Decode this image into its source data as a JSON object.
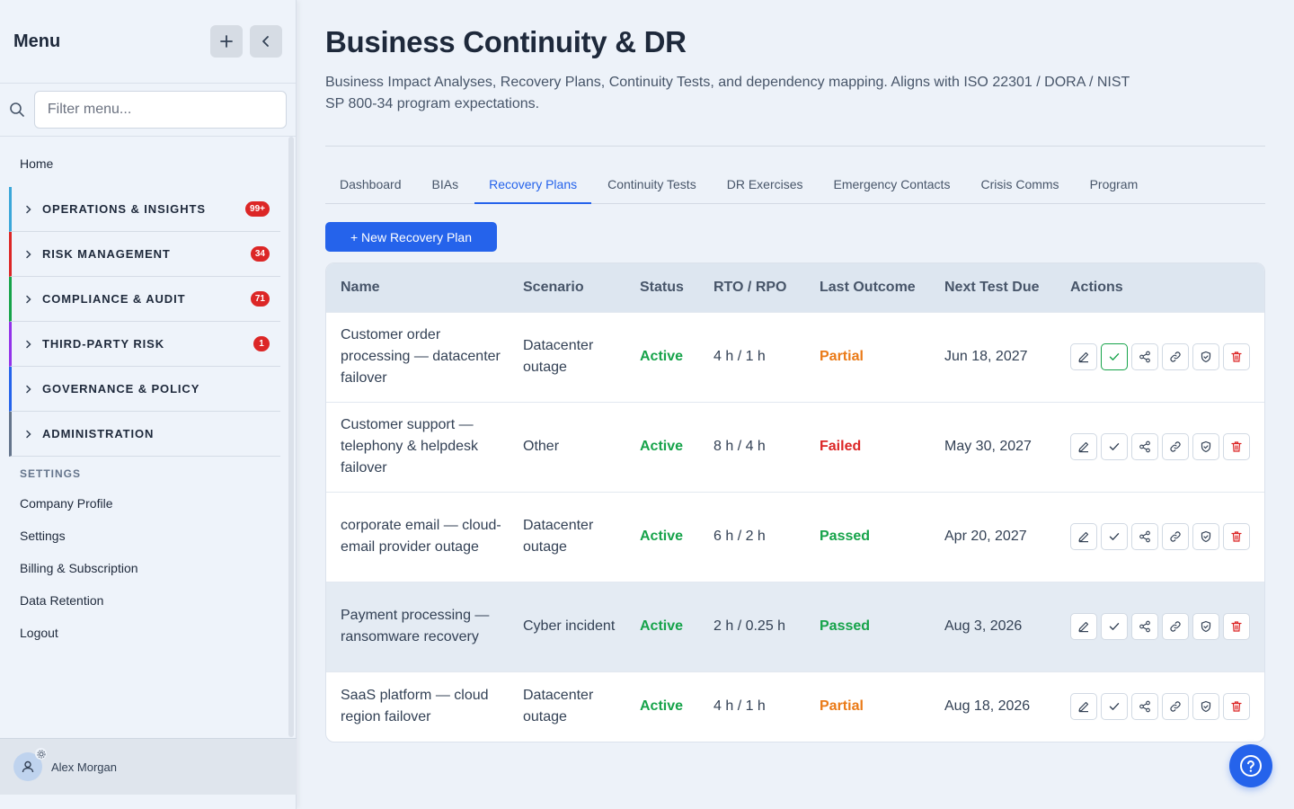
{
  "sidebar": {
    "title": "Menu",
    "search_placeholder": "Filter menu...",
    "home": "Home",
    "groups": [
      {
        "label": "OPERATIONS & INSIGHTS",
        "badge": "99+",
        "color": "#3ba7d9"
      },
      {
        "label": "RISK MANAGEMENT",
        "badge": "34",
        "color": "#dc2626"
      },
      {
        "label": "COMPLIANCE & AUDIT",
        "badge": "71",
        "color": "#16a34a"
      },
      {
        "label": "THIRD-PARTY RISK",
        "badge": "1",
        "color": "#9333ea"
      },
      {
        "label": "GOVERNANCE & POLICY",
        "badge": "",
        "color": "#2563eb"
      },
      {
        "label": "ADMINISTRATION",
        "badge": "",
        "color": "#64748b"
      }
    ],
    "settings_heading": "SETTINGS",
    "settings_links": [
      "Company Profile",
      "Settings",
      "Billing & Subscription",
      "Data Retention",
      "Logout"
    ],
    "user_name": "Alex Morgan"
  },
  "header": {
    "title": "Business Continuity & DR",
    "description": "Business Impact Analyses, Recovery Plans, Continuity Tests, and dependency mapping. Aligns with ISO 22301 / DORA / NIST SP 800-34 program expectations."
  },
  "tabs": [
    {
      "label": "Dashboard",
      "active": false
    },
    {
      "label": "BIAs",
      "active": false
    },
    {
      "label": "Recovery Plans",
      "active": true
    },
    {
      "label": "Continuity Tests",
      "active": false
    },
    {
      "label": "DR Exercises",
      "active": false
    },
    {
      "label": "Emergency Contacts",
      "active": false
    },
    {
      "label": "Crisis Comms",
      "active": false
    },
    {
      "label": "Program",
      "active": false
    }
  ],
  "new_button": "+ New Recovery Plan",
  "table": {
    "columns": [
      "Name",
      "Scenario",
      "Status",
      "RTO / RPO",
      "Last Outcome",
      "Next Test Due",
      "Actions"
    ],
    "rows": [
      {
        "name": "Customer order processing — datacenter failover",
        "scenario": "Datacenter outage",
        "status": "Active",
        "rto_rpo": "4 h / 1 h",
        "outcome": "Partial",
        "next_due": "Jun 18, 2027"
      },
      {
        "name": "Customer support — telephony & helpdesk failover",
        "scenario": "Other",
        "status": "Active",
        "rto_rpo": "8 h / 4 h",
        "outcome": "Failed",
        "next_due": "May 30, 2027"
      },
      {
        "name": "corporate email — cloud-email provider outage",
        "scenario": "Datacenter outage",
        "status": "Active",
        "rto_rpo": "6 h / 2 h",
        "outcome": "Passed",
        "next_due": "Apr 20, 2027"
      },
      {
        "name": "Payment processing — ransomware recovery",
        "scenario": "Cyber incident",
        "status": "Active",
        "rto_rpo": "2 h / 0.25 h",
        "outcome": "Passed",
        "next_due": "Aug 3, 2026"
      },
      {
        "name": "SaaS platform — cloud region failover",
        "scenario": "Datacenter outage",
        "status": "Active",
        "rto_rpo": "4 h / 1 h",
        "outcome": "Partial",
        "next_due": "Aug 18, 2026"
      }
    ],
    "action_icons": [
      "edit-icon",
      "check-icon",
      "share-icon",
      "link-icon",
      "shield-icon",
      "trash-icon"
    ]
  },
  "colors": {
    "accent": "#2563eb",
    "passed": "#16a34a",
    "failed": "#dc2626",
    "partial": "#ea7a17"
  }
}
